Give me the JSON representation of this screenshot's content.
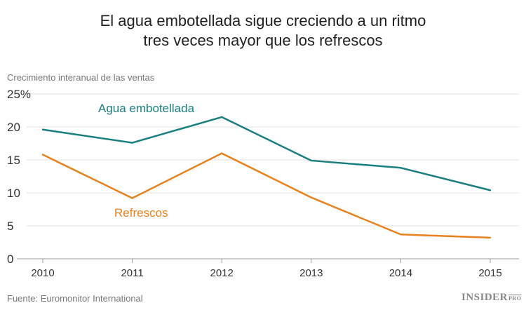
{
  "chart_data": {
    "type": "line",
    "title": "El agua embotellada sigue creciendo a un ritmo tres veces mayor que los refrescos",
    "title_lines": [
      "El agua embotellada sigue creciendo a un ritmo",
      "tres veces mayor que los refrescos"
    ],
    "subtitle": "Crecimiento interanual de las ventas",
    "source": "Fuente: Euromonitor International",
    "x": [
      "2010",
      "2011",
      "2012",
      "2013",
      "2014",
      "2015"
    ],
    "yticks": [
      "0",
      "5",
      "10",
      "15",
      "20",
      "25%"
    ],
    "ylim": [
      0,
      25
    ],
    "grid": true,
    "series": [
      {
        "name": "Agua embotellada",
        "color": "#1a7f7f",
        "values": [
          19.6,
          17.6,
          21.5,
          14.9,
          13.8,
          10.4
        ]
      },
      {
        "name": "Refrescos",
        "color": "#e8821e",
        "values": [
          15.8,
          9.2,
          16.0,
          9.3,
          3.7,
          3.2
        ]
      }
    ]
  },
  "logo": {
    "text": "INSIDER",
    "suffix": "PRO"
  }
}
